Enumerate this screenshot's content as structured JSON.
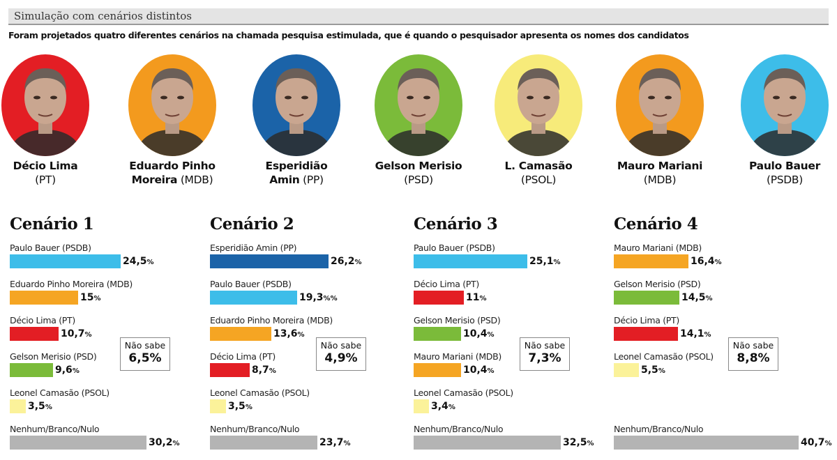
{
  "header": {
    "title": "Simulação com cenários distintos",
    "subtitle": "Foram projetados quatro diferentes cenários na chamada pesquisa estimulada, que é quando o pesquisador apresenta os nomes dos candidatos"
  },
  "candidates": [
    {
      "name": "Décio Lima",
      "party": "(PT)",
      "color": "#e31e24",
      "name_bold_lines": [
        "Décio Lima"
      ],
      "line2": "(PT)"
    },
    {
      "name": "Eduardo Pinho Moreira",
      "party": "(MDB)",
      "color": "#f39a1e",
      "line1": "Eduardo Pinho",
      "line2_bold": "Moreira",
      "line2_rest": " (MDB)"
    },
    {
      "name": "Esperidião Amin",
      "party": "(PP)",
      "color": "#1b63a8",
      "line1": "Esperidião",
      "line2_bold": "Amin",
      "line2_rest": " (PP)"
    },
    {
      "name": "Gelson Merisio",
      "party": "(PSD)",
      "color": "#7bbb3a",
      "line1": "Gelson Merisio",
      "line2": "(PSD)"
    },
    {
      "name": "L. Camasão",
      "party": "(PSOL)",
      "color": "#f7eb7a",
      "line1": "L. Camasão",
      "line2": "(PSOL)"
    },
    {
      "name": "Mauro Mariani",
      "party": "(MDB)",
      "color": "#f39a1e",
      "line1": "Mauro Mariani",
      "line2": "(MDB)"
    },
    {
      "name": "Paulo Bauer",
      "party": "(PSDB)",
      "color": "#3dbde9",
      "line1": "Paulo Bauer",
      "line2": "(PSDB)"
    }
  ],
  "colors": {
    "PSDB": "#3dbde9",
    "PP": "#1b63a8",
    "MDB": "#f5a523",
    "PT": "#e31e24",
    "PSD": "#7bbb3a",
    "PSOL": "#fbf29a",
    "none": "#b4b4b4"
  },
  "chart_data": [
    {
      "type": "bar",
      "title": "Cenário 1",
      "categories": [
        "Paulo Bauer (PSDB)",
        "Eduardo Pinho Moreira (MDB)",
        "Décio Lima (PT)",
        "Gelson Merisio (PSD)",
        "Leonel Camasão (PSOL)",
        "Nenhum/Branco/Nulo"
      ],
      "values": [
        24.5,
        15,
        10.7,
        9.6,
        3.5,
        30.2
      ],
      "labels": [
        "24,5",
        "15",
        "10,7",
        "9,6",
        "3,5",
        "30,2"
      ],
      "suffix": [
        "%",
        "%",
        "%",
        "%",
        "%",
        "%"
      ],
      "colorkeys": [
        "PSDB",
        "MDB",
        "PT",
        "PSD",
        "PSOL",
        "none"
      ],
      "nao_sabe": {
        "label": "Não sabe",
        "value": "6,5%"
      }
    },
    {
      "type": "bar",
      "title": "Cenário 2",
      "categories": [
        "Esperidião Amin (PP)",
        "Paulo Bauer (PSDB)",
        "Eduardo Pinho Moreira (MDB)",
        "Décio Lima (PT)",
        "Leonel Camasão (PSOL)",
        "Nenhum/Branco/Nulo"
      ],
      "values": [
        26.2,
        19.3,
        13.6,
        8.7,
        3.5,
        23.7
      ],
      "labels": [
        "26,2",
        "19,3",
        "13,6",
        "8,7",
        "3,5",
        "23,7"
      ],
      "suffix": [
        "%",
        "%%",
        "%",
        "%",
        "%",
        "%"
      ],
      "colorkeys": [
        "PP",
        "PSDB",
        "MDB",
        "PT",
        "PSOL",
        "none"
      ],
      "nao_sabe": {
        "label": "Não sabe",
        "value": "4,9%"
      }
    },
    {
      "type": "bar",
      "title": "Cenário 3",
      "categories": [
        "Paulo Bauer (PSDB)",
        "Décio Lima (PT)",
        "Gelson Merisio (PSD)",
        "Mauro Mariani (MDB)",
        "Leonel Camasão (PSOL)",
        "Nenhum/Branco/Nulo"
      ],
      "values": [
        25.1,
        11,
        10.4,
        10.4,
        3.4,
        32.5
      ],
      "labels": [
        "25,1",
        "11",
        "10,4",
        "10,4",
        "3,4",
        "32,5"
      ],
      "suffix": [
        "%",
        "%",
        "%",
        "%",
        "%",
        "%"
      ],
      "colorkeys": [
        "PSDB",
        "PT",
        "PSD",
        "MDB",
        "PSOL",
        "none"
      ],
      "nao_sabe": {
        "label": "Não sabe",
        "value": "7,3%"
      }
    },
    {
      "type": "bar",
      "title": "Cenário 4",
      "categories": [
        "Mauro Mariani (MDB)",
        "Gelson Merisio (PSD)",
        "Décio Lima (PT)",
        "Leonel Camasão (PSOL)",
        "",
        "Nenhum/Branco/Nulo"
      ],
      "values": [
        16.4,
        14.5,
        14.1,
        5.5,
        null,
        40.7
      ],
      "labels": [
        "16,4",
        "14,5",
        "14,1",
        "5,5",
        "",
        "40,7"
      ],
      "suffix": [
        "%",
        "%",
        "%",
        "%",
        "",
        "%"
      ],
      "colorkeys": [
        "MDB",
        "PSD",
        "PT",
        "PSOL",
        "",
        "none"
      ],
      "nao_sabe": {
        "label": "Não sabe",
        "value": "8,8%"
      }
    }
  ]
}
